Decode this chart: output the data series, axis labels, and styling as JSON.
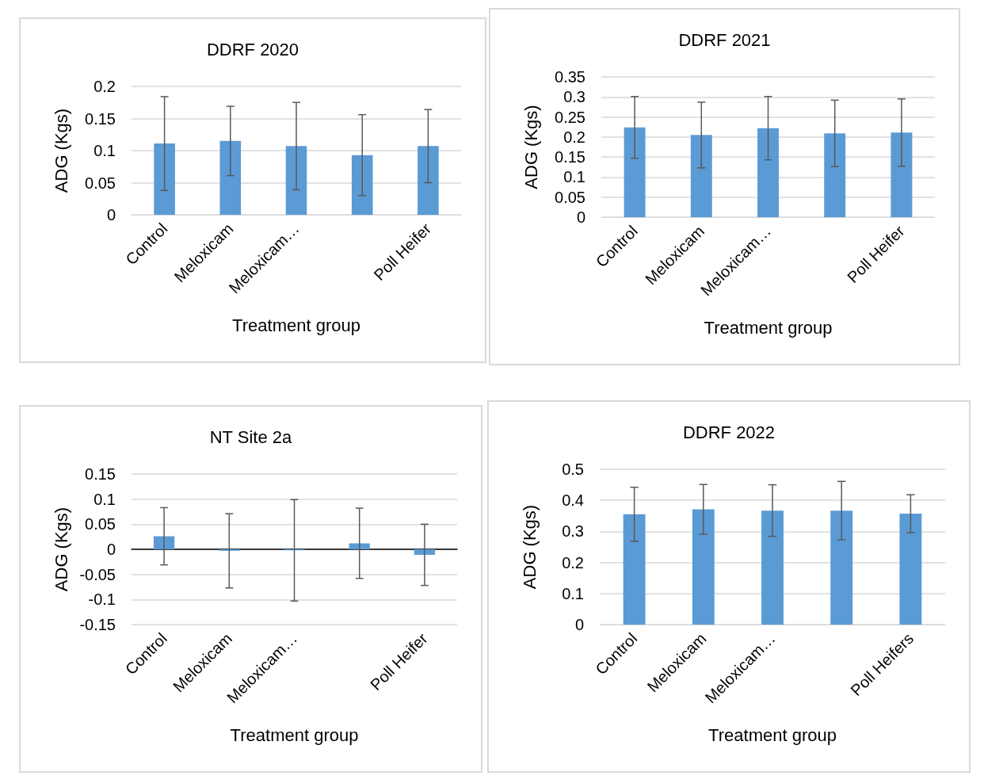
{
  "chart_data": [
    {
      "type": "bar",
      "title": "DDRF 2020",
      "xlabel": "Treatment group",
      "ylabel": "ADG (Kgs)",
      "categories": [
        "Control",
        "Meloxicam",
        "Meloxicam…",
        null,
        "Poll Heifer"
      ],
      "values": [
        0.111,
        0.115,
        0.107,
        0.093,
        0.107
      ],
      "errors": [
        0.073,
        0.054,
        0.068,
        0.063,
        0.057
      ],
      "color": "#5b9bd5",
      "ylim": [
        0,
        0.2
      ],
      "yticks": [
        0,
        0.05,
        0.1,
        0.15,
        0.2
      ],
      "grid": "y"
    },
    {
      "type": "bar",
      "title": "DDRF 2021",
      "xlabel": "Treatment group",
      "ylabel": "ADG (Kgs)",
      "categories": [
        "Control",
        "Meloxicam",
        "Meloxicam…",
        null,
        "Poll Heifer"
      ],
      "values": [
        0.224,
        0.205,
        0.222,
        0.209,
        0.211
      ],
      "errors": [
        0.077,
        0.082,
        0.079,
        0.083,
        0.084
      ],
      "color": "#5b9bd5",
      "ylim": [
        0,
        0.35
      ],
      "yticks": [
        0,
        0.05,
        0.1,
        0.15,
        0.2,
        0.25,
        0.3,
        0.35
      ],
      "grid": "y"
    },
    {
      "type": "bar",
      "title": "NT Site 2a",
      "xlabel": "Treatment group",
      "ylabel": "ADG (Kgs)",
      "categories": [
        "Control",
        "Meloxicam",
        "Meloxicam…",
        null,
        "Poll Heifer"
      ],
      "values": [
        0.026,
        -0.003,
        -0.002,
        0.012,
        -0.011
      ],
      "errors": [
        0.057,
        0.074,
        0.101,
        0.07,
        0.061
      ],
      "color": "#5b9bd5",
      "ylim": [
        -0.15,
        0.15
      ],
      "yticks": [
        -0.15,
        -0.1,
        -0.05,
        0,
        0.05,
        0.1,
        0.15
      ],
      "grid": "y"
    },
    {
      "type": "bar",
      "title": "DDRF 2022",
      "xlabel": "Treatment group",
      "ylabel": "ADG (Kgs)",
      "categories": [
        "Control",
        "Meloxicam",
        "Meloxicam…",
        null,
        "Poll Heifers"
      ],
      "values": [
        0.355,
        0.371,
        0.367,
        0.367,
        0.357
      ],
      "errors": [
        0.087,
        0.08,
        0.083,
        0.094,
        0.061
      ],
      "color": "#5b9bd5",
      "ylim": [
        0,
        0.5
      ],
      "yticks": [
        0,
        0.1,
        0.2,
        0.3,
        0.4,
        0.5
      ],
      "grid": "y"
    }
  ]
}
